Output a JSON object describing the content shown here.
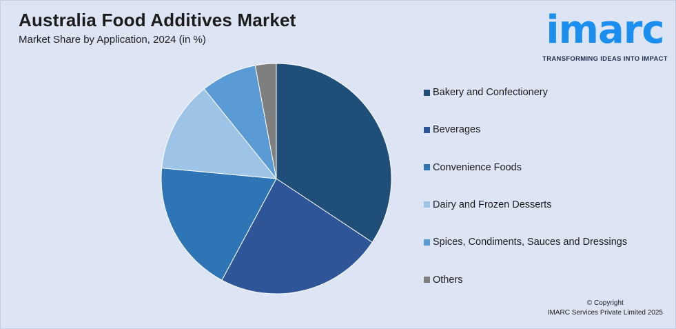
{
  "header": {
    "title": "Australia Food Additives Market",
    "subtitle": "Market Share by Application, 2024 (in %)"
  },
  "logo": {
    "wordmark": "imarc",
    "tagline": "TRANSFORMING IDEAS INTO IMPACT",
    "color": "#1b8ff0"
  },
  "chart_data": {
    "type": "pie",
    "title": "Australia Food Additives Market",
    "subtitle": "Market Share by Application, 2024 (in %)",
    "unit": "%",
    "start_angle_deg": 0,
    "direction": "clockwise",
    "legend_position": "right",
    "slices": [
      {
        "label": "Bakery and Confectionery",
        "value": 35,
        "color": "#1f4e79"
      },
      {
        "label": "Beverages",
        "value": 24,
        "color": "#2e5597"
      },
      {
        "label": "Convenience Foods",
        "value": 19,
        "color": "#2e75b6"
      },
      {
        "label": "Dairy and Frozen Desserts",
        "value": 13,
        "color": "#9dc3e6"
      },
      {
        "label": "Spices, Condiments, Sauces and Dressings",
        "value": 8,
        "color": "#5b9bd5"
      },
      {
        "label": "Others",
        "value": 3,
        "color": "#7f7f7f"
      }
    ]
  },
  "footer": {
    "copyright_line1": "© Copyright",
    "copyright_line2": "IMARC Services Private Limited 2025"
  }
}
